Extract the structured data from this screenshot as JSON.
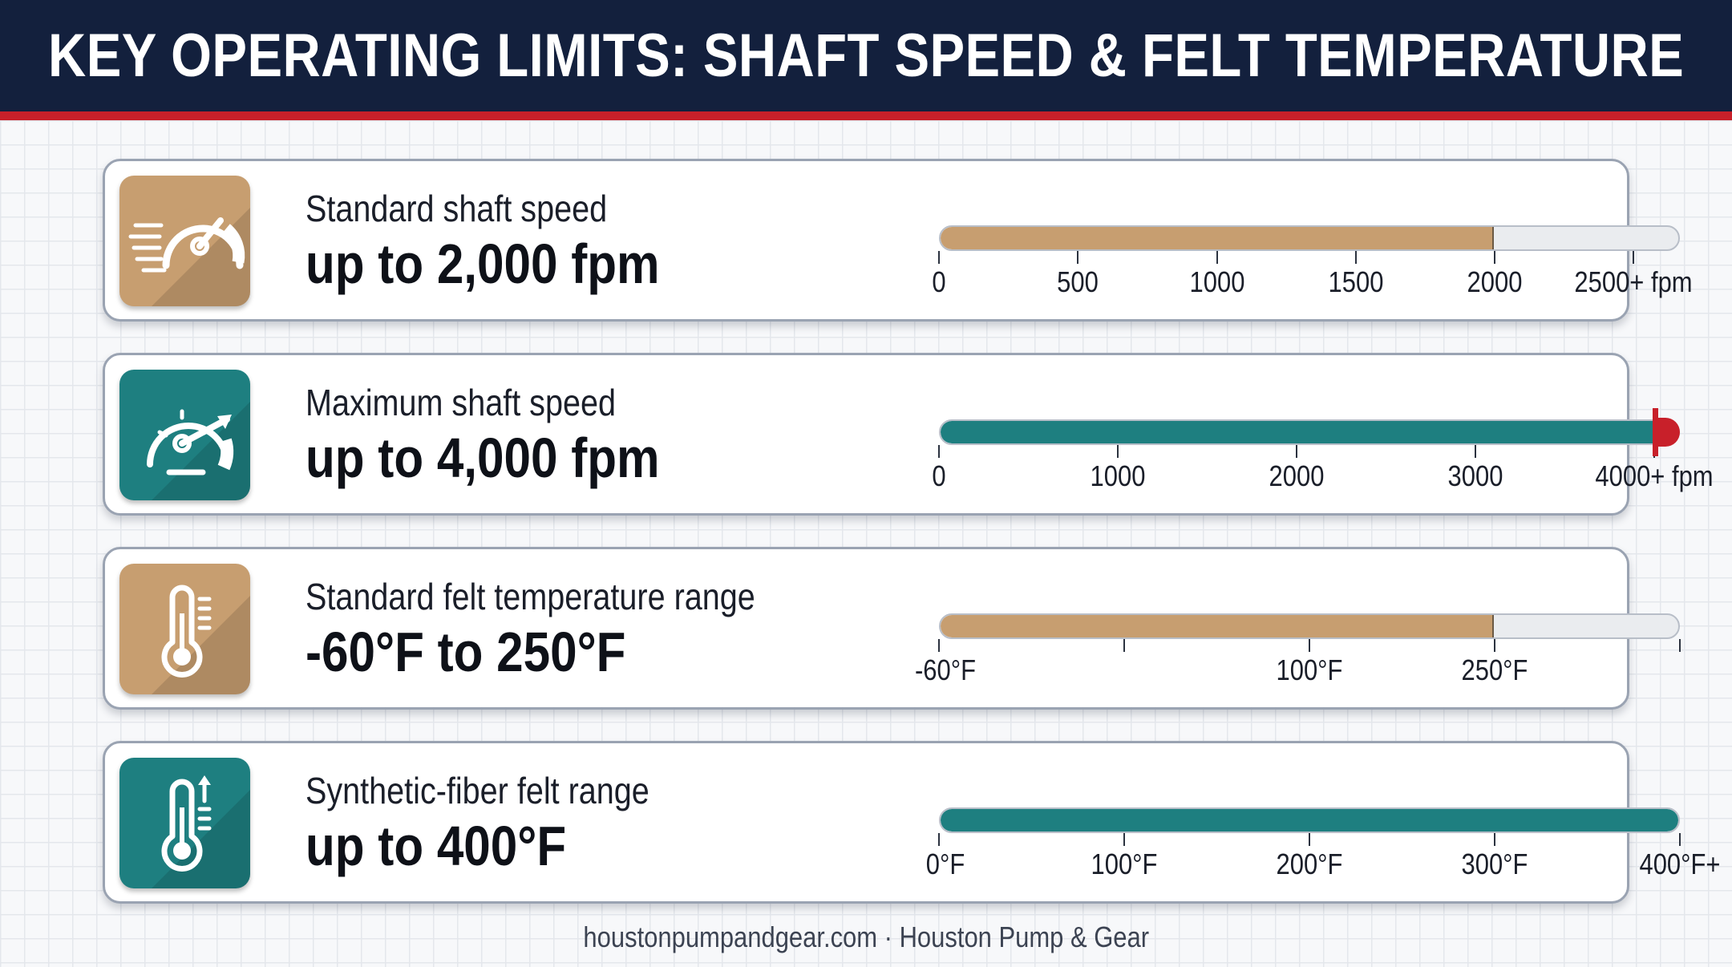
{
  "title": "KEY OPERATING LIMITS: SHAFT SPEED & FELT TEMPERATURE",
  "colors": {
    "header_bg": "#13203d",
    "header_rule": "#c8202a",
    "tan": "#c79e70",
    "teal": "#1e7f80",
    "limit_red": "#c8202a"
  },
  "cards": [
    {
      "label": "Standard shaft speed",
      "value": "up to 2,000 fpm",
      "icon": "speedometer-motion-icon",
      "theme": "tan",
      "gauge": {
        "fill_fraction": 0.75,
        "ticks": [
          {
            "label": "0",
            "at": 0
          },
          {
            "label": "500",
            "at": 0.1875
          },
          {
            "label": "1000",
            "at": 0.375
          },
          {
            "label": "1500",
            "at": 0.5625
          },
          {
            "label": "2000",
            "at": 0.75
          },
          {
            "label": "2500+ fpm",
            "at": 0.9375
          }
        ]
      }
    },
    {
      "label": "Maximum shaft speed",
      "value": "up to 4,000 fpm",
      "icon": "speedometer-icon",
      "theme": "teal",
      "gauge": {
        "fill_fraction": 1.0,
        "limit_marker": true,
        "ticks": [
          {
            "label": "0",
            "at": 0
          },
          {
            "label": "1000",
            "at": 0.2414
          },
          {
            "label": "2000",
            "at": 0.4828
          },
          {
            "label": "3000",
            "at": 0.7241
          },
          {
            "label": "4000+ fpm",
            "at": 0.9655
          }
        ]
      }
    },
    {
      "label": "Standard felt temperature range",
      "value": "-60°F to 250°F",
      "icon": "thermometer-icon",
      "theme": "tan",
      "gauge": {
        "fill_fraction": 0.75,
        "ticks": [
          {
            "label": "-60°F",
            "at": 0
          },
          {
            "label": "",
            "at": 0.25
          },
          {
            "label": "100°F",
            "at": 0.5
          },
          {
            "label": "250°F",
            "at": 0.75
          },
          {
            "label": "",
            "at": 1.0
          }
        ]
      }
    },
    {
      "label": "Synthetic-fiber felt range",
      "value": "up to 400°F",
      "icon": "thermometer-up-icon",
      "theme": "teal",
      "gauge": {
        "fill_fraction": 1.0,
        "ticks": [
          {
            "label": "0°F",
            "at": 0
          },
          {
            "label": "100°F",
            "at": 0.25
          },
          {
            "label": "200°F",
            "at": 0.5
          },
          {
            "label": "300°F",
            "at": 0.75
          },
          {
            "label": "400°F+",
            "at": 1.0
          }
        ]
      }
    }
  ],
  "footer": "houstonpumpandgear.com · Houston Pump & Gear"
}
